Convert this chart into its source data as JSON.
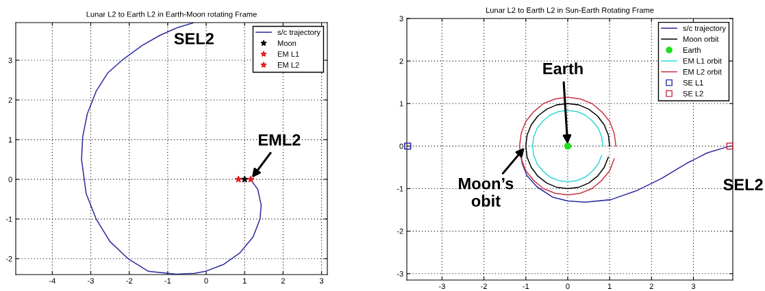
{
  "chart_data": [
    {
      "type": "line",
      "title": "Lunar L2 to Earth L2 in Earth-Moon rotating Frame",
      "xlim": [
        -4.95,
        3.15
      ],
      "ylim": [
        -2.4,
        3.95
      ],
      "xticks": [
        -4,
        -3,
        -2,
        -1,
        0,
        1,
        2,
        3
      ],
      "yticks": [
        -2,
        -1,
        0,
        1,
        2,
        3
      ],
      "grid": true,
      "legend": "top right",
      "line_style": "solid",
      "series": [
        {
          "name": "s/c trajectory",
          "color": "#2b2b9e",
          "x": [
            1.15,
            1.34,
            1.43,
            1.4,
            1.22,
            0.87,
            0.46,
            -0.02,
            -0.31,
            -0.79,
            -1.5,
            -2.03,
            -2.5,
            -2.86,
            -3.12,
            -3.24,
            -3.21,
            -3.09,
            -2.86,
            -2.56,
            -2.15,
            -1.67,
            -1.2,
            -0.73,
            -0.34
          ],
          "values": [
            0,
            -0.25,
            -0.65,
            -1.0,
            -1.45,
            -1.86,
            -2.14,
            -2.32,
            -2.37,
            -2.39,
            -2.32,
            -2.0,
            -1.57,
            -1.0,
            -0.36,
            0.5,
            1.07,
            1.65,
            2.22,
            2.68,
            3.03,
            3.37,
            3.63,
            3.83,
            3.94
          ]
        },
        {
          "name": "Moon",
          "type": "scatter",
          "marker": "star",
          "color": "#000000",
          "x": [
            1
          ],
          "values": [
            0
          ]
        },
        {
          "name": "EM L1",
          "type": "scatter",
          "marker": "star",
          "color": "#e02020",
          "x": [
            0.84
          ],
          "values": [
            0
          ]
        },
        {
          "name": "EM L2",
          "type": "scatter",
          "marker": "star",
          "color": "#e02020",
          "x": [
            1.16
          ],
          "values": [
            0
          ]
        }
      ],
      "annotations": [
        {
          "text": "SEL2",
          "x": -0.34,
          "y": 3.94
        },
        {
          "text": "EML2",
          "x": 1.16,
          "y": 0
        }
      ]
    },
    {
      "type": "line",
      "title": "Lunar L2 to Earth L2 in Sun-Earth Rotating Frame",
      "xlim": [
        -3.84,
        3.94
      ],
      "ylim": [
        -3.15,
        3.0
      ],
      "xticks": [
        -3,
        -2,
        -1,
        0,
        1,
        2,
        3
      ],
      "yticks": [
        -3,
        -2,
        -1,
        0,
        1,
        2,
        3
      ],
      "grid": true,
      "legend": "top right",
      "line_style": "solid",
      "series": [
        {
          "name": "s/c trajectory",
          "color": "#2b2b9e",
          "x": [
            3.87,
            3.33,
            2.85,
            2.24,
            1.64,
            1.03,
            0.42,
            0,
            -0.36,
            -0.73,
            -0.97,
            -1.09,
            -1.12
          ],
          "values": [
            0,
            -0.16,
            -0.4,
            -0.76,
            -1.05,
            -1.26,
            -1.32,
            -1.29,
            -1.2,
            -0.96,
            -0.7,
            -0.4,
            -0.1
          ]
        },
        {
          "name": "Moon orbit",
          "color": "#000000",
          "x": [
            1,
            0.97,
            0.87,
            0.71,
            0.5,
            0.26,
            0,
            -0.26,
            -0.5,
            -0.71,
            -0.87,
            -0.97,
            -1,
            -0.97,
            -0.87,
            -0.71,
            -0.5,
            -0.26,
            0,
            0.26,
            0.5,
            0.71,
            0.87,
            0.97
          ],
          "values": [
            0,
            0.26,
            0.5,
            0.71,
            0.87,
            0.97,
            1,
            0.97,
            0.87,
            0.71,
            0.5,
            0.26,
            0,
            -0.26,
            -0.5,
            -0.71,
            -0.87,
            -0.97,
            -1,
            -0.97,
            -0.87,
            -0.71,
            -0.5,
            -0.26
          ]
        },
        {
          "name": "Earth",
          "type": "scatter",
          "marker": "circle",
          "color": "#22dd22",
          "x": [
            0
          ],
          "values": [
            0
          ]
        },
        {
          "name": "EM L1 orbit",
          "color": "#33d6d6",
          "x": [
            0.84,
            0.81,
            0.73,
            0.59,
            0.42,
            0.22,
            0,
            -0.22,
            -0.42,
            -0.59,
            -0.73,
            -0.81,
            -0.84,
            -0.81,
            -0.73,
            -0.59,
            -0.42,
            -0.22,
            0,
            0.22,
            0.42,
            0.59,
            0.73,
            0.81
          ],
          "values": [
            0,
            0.22,
            0.42,
            0.59,
            0.73,
            0.81,
            0.84,
            0.81,
            0.73,
            0.59,
            0.42,
            0.22,
            0,
            -0.22,
            -0.42,
            -0.59,
            -0.73,
            -0.81,
            -0.84,
            -0.81,
            -0.73,
            -0.59,
            -0.42,
            -0.22
          ]
        },
        {
          "name": "EM L2 orbit",
          "color": "#cc3344",
          "x": [
            1.15,
            1.11,
            1,
            0.81,
            0.58,
            0.3,
            0,
            -0.3,
            -0.58,
            -0.81,
            -1,
            -1.11,
            -1.15,
            -1.11,
            -1,
            -0.81,
            -0.58,
            -0.3,
            0,
            0.3,
            0.58,
            0.81,
            1,
            1.11
          ],
          "values": [
            0,
            0.3,
            0.58,
            0.81,
            1,
            1.11,
            1.15,
            1.11,
            1,
            0.81,
            0.58,
            0.3,
            0,
            -0.3,
            -0.58,
            -0.81,
            -1,
            -1.11,
            -1.15,
            -1.11,
            -1,
            -0.81,
            -0.58,
            -0.3
          ]
        },
        {
          "name": "SE L1",
          "type": "scatter",
          "marker": "square",
          "color": "#2b2b9e",
          "x": [
            -3.82
          ],
          "values": [
            0
          ]
        },
        {
          "name": "SE L2",
          "type": "scatter",
          "marker": "square",
          "color": "#cc3344",
          "x": [
            3.87
          ],
          "values": [
            0
          ]
        }
      ],
      "annotations": [
        {
          "text": "Earth",
          "x": 0,
          "y": 0
        },
        {
          "text": "Moon’s\nobit",
          "x": -1,
          "y": 0
        },
        {
          "text": "SEL2",
          "x": 3.87,
          "y": 0
        }
      ]
    }
  ]
}
